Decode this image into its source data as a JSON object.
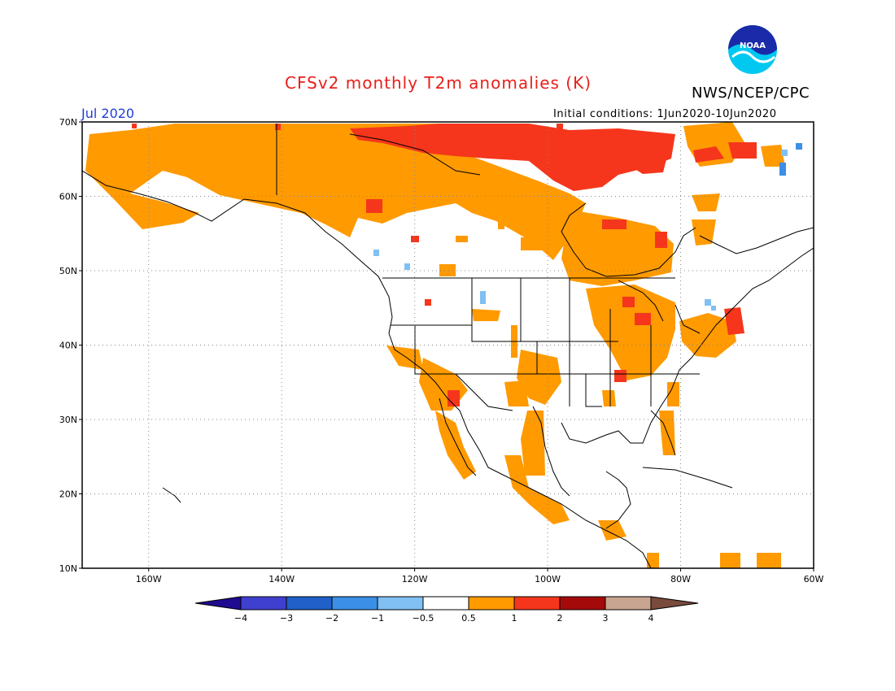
{
  "header": {
    "title": "CFSv2 monthly T2m anomalies (K)",
    "agency": "NWS/NCEP/CPC",
    "month": "Jul 2020",
    "initial_conditions": "Initial conditions: 1Jun2020-10Jun2020"
  },
  "logo": {
    "text": "NOAA"
  },
  "map": {
    "lon_range": [
      -170,
      -60
    ],
    "lat_range": [
      10,
      70
    ],
    "lat_ticks": [
      {
        "value": 70,
        "label": "70N"
      },
      {
        "value": 60,
        "label": "60N"
      },
      {
        "value": 50,
        "label": "50N"
      },
      {
        "value": 40,
        "label": "40N"
      },
      {
        "value": 30,
        "label": "30N"
      },
      {
        "value": 20,
        "label": "20N"
      },
      {
        "value": 10,
        "label": "10N"
      }
    ],
    "lon_ticks": [
      {
        "value": -160,
        "label": "160W"
      },
      {
        "value": -140,
        "label": "140W"
      },
      {
        "value": -120,
        "label": "120W"
      },
      {
        "value": -100,
        "label": "100W"
      },
      {
        "value": -80,
        "label": "80W"
      },
      {
        "value": -60,
        "label": "60W"
      }
    ],
    "grid_style": "dotted"
  },
  "colorbar": {
    "labels": [
      "−4",
      "−3",
      "−2",
      "−1",
      "−0.5",
      "0.5",
      "1",
      "2",
      "3",
      "4"
    ],
    "colors": [
      "#1e0b8f",
      "#4040d0",
      "#2060c8",
      "#3c8fe6",
      "#80c0f2",
      "#ffffff",
      "#ff9a00",
      "#f5361c",
      "#a50a0a",
      "#c8a590",
      "#7a4a3c"
    ]
  },
  "anomaly_colors": {
    "warm_05_1": "#ff9a00",
    "warm_1_2": "#f5361c",
    "cool_05_1": "#80c0f2",
    "cool_1_2": "#3c8fe6"
  }
}
